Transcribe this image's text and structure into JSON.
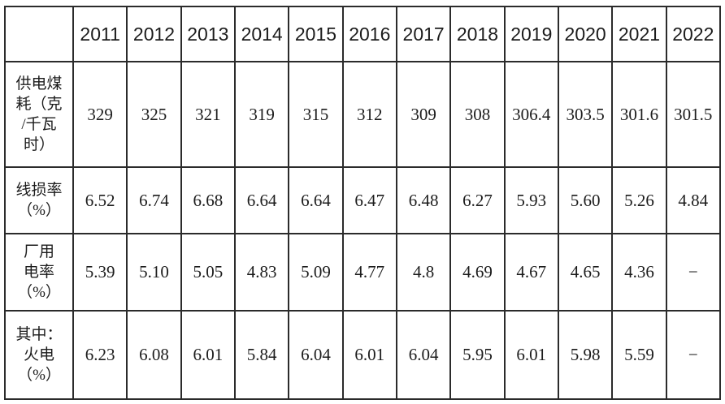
{
  "colors": {
    "border": "#2b2b2b",
    "text": "#1c1c1c",
    "background": "#ffffff"
  },
  "chart_data": {
    "type": "table",
    "title": "",
    "columns": [
      "",
      "2011",
      "2012",
      "2013",
      "2014",
      "2015",
      "2016",
      "2017",
      "2018",
      "2019",
      "2020",
      "2021",
      "2022"
    ],
    "rows": [
      {
        "label": "供电煤耗（克/千瓦时）",
        "values": [
          "329",
          "325",
          "321",
          "319",
          "315",
          "312",
          "309",
          "308",
          "306.4",
          "303.5",
          "301.6",
          "301.5"
        ]
      },
      {
        "label": "线损率（%）",
        "values": [
          "6.52",
          "6.74",
          "6.68",
          "6.64",
          "6.64",
          "6.47",
          "6.48",
          "6.27",
          "5.93",
          "5.60",
          "5.26",
          "4.84"
        ]
      },
      {
        "label": "厂用电率（%）",
        "values": [
          "5.39",
          "5.10",
          "5.05",
          "4.83",
          "5.09",
          "4.77",
          "4.8",
          "4.69",
          "4.67",
          "4.65",
          "4.36",
          "−"
        ]
      },
      {
        "label": "其中：火电（%）",
        "values": [
          "6.23",
          "6.08",
          "6.01",
          "5.84",
          "6.04",
          "6.01",
          "6.04",
          "5.95",
          "6.01",
          "5.98",
          "5.59",
          "−"
        ]
      }
    ]
  },
  "table": {
    "corner": "",
    "years": [
      "2011",
      "2012",
      "2013",
      "2014",
      "2015",
      "2016",
      "2017",
      "2018",
      "2019",
      "2020",
      "2021",
      "2022"
    ],
    "rows": [
      {
        "label": "供电煤\n耗（克\n/千瓦\n时）",
        "values": [
          "329",
          "325",
          "321",
          "319",
          "315",
          "312",
          "309",
          "308",
          "306.4",
          "303.5",
          "301.6",
          "301.5"
        ]
      },
      {
        "label": "线损率\n（%）",
        "values": [
          "6.52",
          "6.74",
          "6.68",
          "6.64",
          "6.64",
          "6.47",
          "6.48",
          "6.27",
          "5.93",
          "5.60",
          "5.26",
          "4.84"
        ]
      },
      {
        "label": "厂用\n电率\n（%）",
        "values": [
          "5.39",
          "5.10",
          "5.05",
          "4.83",
          "5.09",
          "4.77",
          "4.8",
          "4.69",
          "4.67",
          "4.65",
          "4.36",
          "−"
        ]
      },
      {
        "label": "其中：\n火电\n（%）",
        "values": [
          "6.23",
          "6.08",
          "6.01",
          "5.84",
          "6.04",
          "6.01",
          "6.04",
          "5.95",
          "6.01",
          "5.98",
          "5.59",
          "−"
        ]
      }
    ]
  }
}
